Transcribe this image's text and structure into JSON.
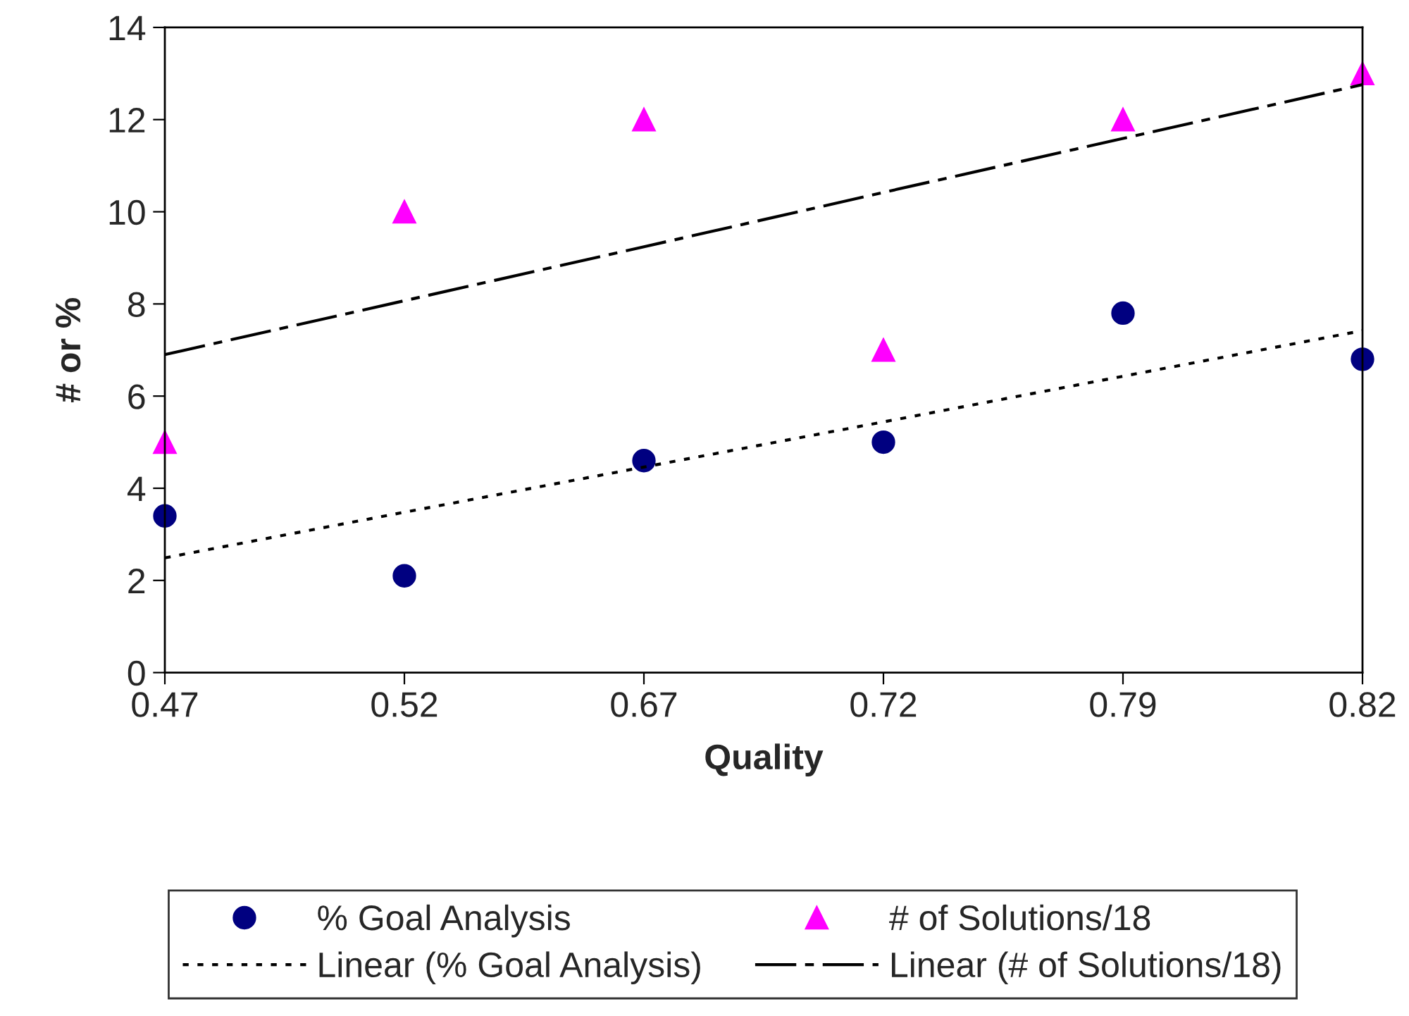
{
  "chart_data": {
    "type": "scatter",
    "xlabel": "Quality",
    "ylabel": "# or %",
    "categories": [
      "0.47",
      "0.52",
      "0.67",
      "0.72",
      "0.79",
      "0.82"
    ],
    "series": [
      {
        "name": "% Goal Analysis",
        "color": "#000080",
        "marker": "circle",
        "values": [
          3.4,
          2.1,
          4.6,
          5.0,
          7.8,
          6.8
        ]
      },
      {
        "name": "# of Solutions/18",
        "color": "#ff00ff",
        "marker": "triangle",
        "values": [
          5.0,
          10.0,
          12.0,
          7.0,
          12.0,
          13.0
        ]
      },
      {
        "name": "Linear (% Goal Analysis)",
        "type": "line",
        "color": "#000000",
        "line_style": "dotted",
        "marker": "none",
        "values": [
          2.49,
          3.48,
          4.46,
          5.44,
          6.43,
          7.42
        ]
      },
      {
        "name": "Linear (# of Solutions/18)",
        "type": "line",
        "color": "#000000",
        "line_style": "dashed",
        "marker": "none",
        "values": [
          6.9,
          8.07,
          9.24,
          10.42,
          11.59,
          12.76
        ]
      }
    ],
    "ylim": [
      0,
      14
    ],
    "yticks": [
      0,
      2,
      4,
      6,
      8,
      10,
      12,
      14
    ],
    "grid": false,
    "legend": "bottom"
  }
}
